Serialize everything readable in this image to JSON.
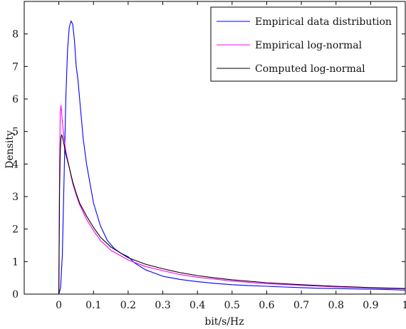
{
  "chart_data": {
    "type": "line",
    "xlabel": "bit/s/Hz",
    "ylabel": "Density",
    "xlim": [
      -0.1,
      1.0
    ],
    "ylim": [
      0,
      9
    ],
    "xticks": [
      "0",
      "0.1",
      "0.2",
      "0.3",
      "0.4",
      "0.5",
      "0.6",
      "0.7",
      "0.8",
      "0.9",
      "1"
    ],
    "yticks": [
      "0",
      "1",
      "2",
      "3",
      "4",
      "5",
      "6",
      "7",
      "8"
    ],
    "legend_position": "top-right",
    "grid": false,
    "series": [
      {
        "name": "Empirical data distribution",
        "color": "#0000ff",
        "x": [
          0.0,
          0.005,
          0.01,
          0.015,
          0.02,
          0.025,
          0.03,
          0.035,
          0.04,
          0.045,
          0.05,
          0.055,
          0.06,
          0.07,
          0.08,
          0.09,
          0.1,
          0.12,
          0.14,
          0.16,
          0.18,
          0.2,
          0.22,
          0.25,
          0.3,
          0.35,
          0.4,
          0.45,
          0.5,
          0.55,
          0.6,
          0.65,
          0.7,
          0.75,
          0.8,
          0.85,
          0.9,
          0.95,
          1.0
        ],
        "y": [
          0.0,
          0.2,
          1.2,
          3.5,
          6.0,
          7.5,
          8.2,
          8.4,
          8.3,
          7.8,
          7.0,
          6.6,
          6.0,
          4.8,
          4.0,
          3.4,
          2.8,
          2.1,
          1.65,
          1.4,
          1.25,
          1.15,
          0.95,
          0.75,
          0.55,
          0.45,
          0.38,
          0.33,
          0.29,
          0.26,
          0.24,
          0.22,
          0.2,
          0.18,
          0.17,
          0.16,
          0.15,
          0.14,
          0.12
        ]
      },
      {
        "name": "Empirical log-normal",
        "color": "#ff00ff",
        "x": [
          0.0,
          0.002,
          0.004,
          0.006,
          0.008,
          0.01,
          0.015,
          0.02,
          0.03,
          0.04,
          0.05,
          0.06,
          0.08,
          0.1,
          0.12,
          0.15,
          0.2,
          0.25,
          0.3,
          0.35,
          0.4,
          0.45,
          0.5,
          0.6,
          0.7,
          0.8,
          0.9,
          1.0
        ],
        "y": [
          0.0,
          3.8,
          5.6,
          5.8,
          5.6,
          5.3,
          4.8,
          4.4,
          3.9,
          3.4,
          3.05,
          2.75,
          2.3,
          1.95,
          1.65,
          1.35,
          1.05,
          0.85,
          0.72,
          0.6,
          0.52,
          0.46,
          0.4,
          0.32,
          0.27,
          0.22,
          0.19,
          0.16
        ]
      },
      {
        "name": "Computed log-normal",
        "color": "#000000",
        "x": [
          0.0,
          0.002,
          0.004,
          0.006,
          0.008,
          0.01,
          0.015,
          0.02,
          0.03,
          0.04,
          0.05,
          0.06,
          0.08,
          0.1,
          0.12,
          0.15,
          0.2,
          0.25,
          0.3,
          0.35,
          0.4,
          0.45,
          0.5,
          0.6,
          0.7,
          0.8,
          0.9,
          1.0
        ],
        "y": [
          0.0,
          3.2,
          4.4,
          4.8,
          4.9,
          4.85,
          4.6,
          4.3,
          3.9,
          3.45,
          3.1,
          2.8,
          2.4,
          2.05,
          1.75,
          1.45,
          1.12,
          0.92,
          0.78,
          0.66,
          0.57,
          0.5,
          0.44,
          0.35,
          0.29,
          0.24,
          0.2,
          0.17
        ]
      }
    ]
  }
}
